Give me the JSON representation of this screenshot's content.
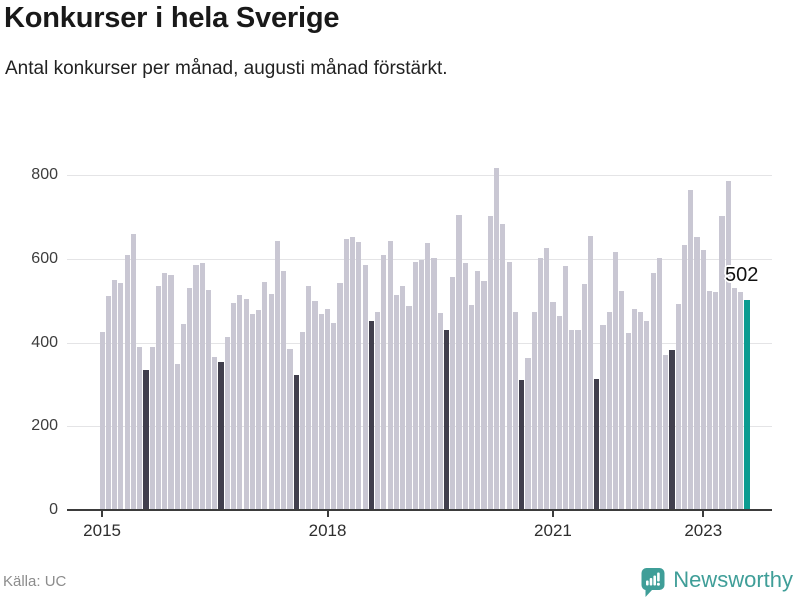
{
  "header": {
    "title": "Konkurser i hela Sverige",
    "subtitle": "Antal konkurser per månad, augusti månad förstärkt."
  },
  "annotation": {
    "value_label": "502"
  },
  "footer": {
    "source": "Källa: UC",
    "brand": "Newsworthy",
    "brand_icon": "newsworthy-bubble-barchart-icon"
  },
  "colors": {
    "bar_default": "#c9c7d3",
    "bar_august": "#413f4d",
    "bar_highlight": "#0c9c91",
    "brand_teal": "#3f9e98",
    "grid": "#e4e4e6",
    "axis": "#3b3b3b",
    "title_text": "#191919",
    "muted_text": "#8c8c8c"
  },
  "chart_data": {
    "type": "bar",
    "title": "Konkurser i hela Sverige",
    "subtitle": "Antal konkurser per månad, augusti månad förstärkt.",
    "start_month": "2015-01",
    "end_month": "2023-08",
    "y_ticks": [
      0,
      200,
      400,
      600,
      800
    ],
    "ylim": [
      0,
      850
    ],
    "grid": true,
    "highlight_rule": "every August darkened; latest month (Aug 2023) teal with data label",
    "highlighted_value": 502,
    "x_ticks": [
      {
        "label": "2015",
        "month_index": 0
      },
      {
        "label": "2018",
        "month_index": 36
      },
      {
        "label": "2021",
        "month_index": 72
      },
      {
        "label": "2023",
        "month_index": 96
      }
    ],
    "series": [
      {
        "name": "Antal konkurser",
        "values": [
          426,
          512,
          550,
          541,
          610,
          660,
          390,
          335,
          390,
          534,
          566,
          562,
          349,
          445,
          530,
          584,
          589,
          526,
          366,
          354,
          413,
          494,
          514,
          504,
          469,
          478,
          545,
          517,
          643,
          570,
          384,
          322,
          426,
          535,
          500,
          468,
          480,
          446,
          542,
          648,
          653,
          640,
          586,
          451,
          474,
          610,
          643,
          513,
          535,
          488,
          593,
          597,
          637,
          601,
          470,
          429,
          556,
          704,
          590,
          490,
          570,
          548,
          701,
          817,
          682,
          593,
          474,
          310,
          363,
          474,
          601,
          625,
          496,
          464,
          583,
          431,
          431,
          540,
          655,
          314,
          441,
          472,
          615,
          524,
          422,
          481,
          472,
          452,
          567,
          601,
          369,
          381,
          492,
          633,
          764,
          651,
          621,
          524,
          520,
          702,
          786,
          530,
          520,
          502
        ]
      }
    ]
  }
}
